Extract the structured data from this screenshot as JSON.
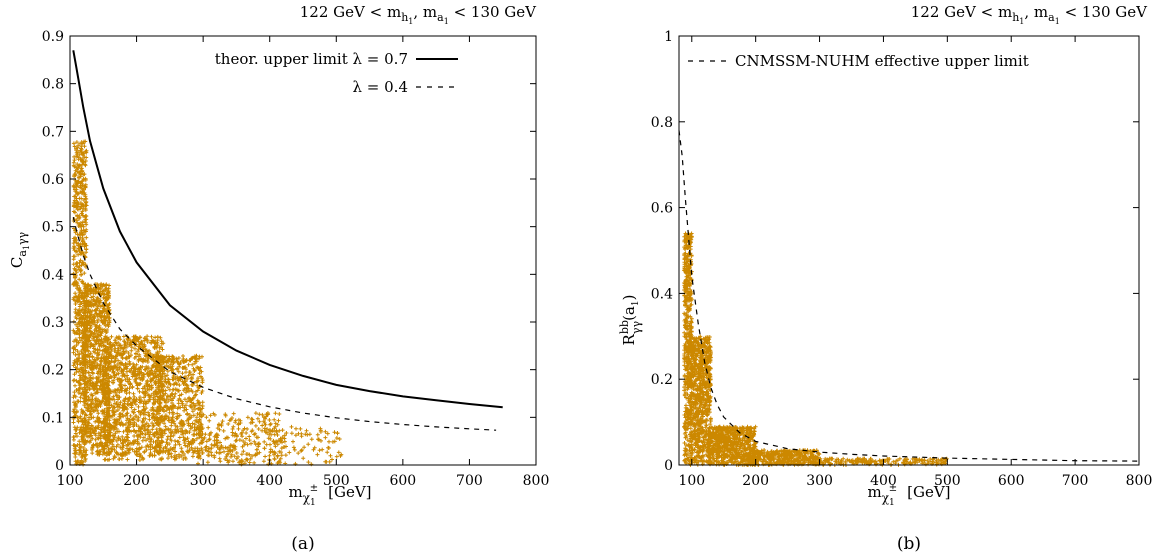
{
  "chart_data": [
    {
      "type": "scatter",
      "panel_label": "(a)",
      "condition_label": {
        "prefix": "122 GeV < m",
        "sub1": "h",
        "sub1b": "1",
        "mid": ", m",
        "sub2": "a",
        "sub2b": "1",
        "suffix": " < 130 GeV"
      },
      "xlabel": {
        "main": "m",
        "sub": "χ",
        "subsub": "1",
        "sup": "±",
        "unit": "[GeV]"
      },
      "ylabel": {
        "main": "C",
        "sub": "a",
        "subsub": "1",
        "sub2": "γγ"
      },
      "xlim": [
        100,
        800
      ],
      "ylim": [
        0,
        0.9
      ],
      "xticks": [
        100,
        200,
        300,
        400,
        500,
        600,
        700,
        800
      ],
      "yticks": [
        0,
        0.1,
        0.2,
        0.3,
        0.4,
        0.5,
        0.6,
        0.7,
        0.8,
        0.9
      ],
      "ytick_labels": [
        "0",
        "0.1",
        "0.2",
        "0.3",
        "0.4",
        "0.5",
        "0.6",
        "0.7",
        "0.8",
        "0.9"
      ],
      "scatter_color": "#cc8800",
      "legend": [
        {
          "text": "theor. upper limit  λ = 0.7",
          "style": "solid"
        },
        {
          "text": "λ = 0.4",
          "style": "dashed"
        }
      ],
      "curves": [
        {
          "style": "solid",
          "points": [
            [
              105,
              0.87
            ],
            [
              110,
              0.83
            ],
            [
              120,
              0.75
            ],
            [
              130,
              0.68
            ],
            [
              140,
              0.63
            ],
            [
              150,
              0.58
            ],
            [
              175,
              0.49
            ],
            [
              200,
              0.425
            ],
            [
              250,
              0.335
            ],
            [
              300,
              0.28
            ],
            [
              350,
              0.24
            ],
            [
              400,
              0.21
            ],
            [
              450,
              0.187
            ],
            [
              500,
              0.168
            ],
            [
              550,
              0.155
            ],
            [
              600,
              0.144
            ],
            [
              650,
              0.136
            ],
            [
              700,
              0.128
            ],
            [
              750,
              0.121
            ]
          ]
        },
        {
          "style": "dashed",
          "points": [
            [
              105,
              0.52
            ],
            [
              110,
              0.49
            ],
            [
              120,
              0.44
            ],
            [
              130,
              0.4
            ],
            [
              140,
              0.37
            ],
            [
              150,
              0.34
            ],
            [
              175,
              0.285
            ],
            [
              200,
              0.25
            ],
            [
              250,
              0.196
            ],
            [
              300,
              0.163
            ],
            [
              350,
              0.139
            ],
            [
              400,
              0.122
            ],
            [
              450,
              0.109
            ],
            [
              500,
              0.099
            ],
            [
              550,
              0.091
            ],
            [
              600,
              0.085
            ],
            [
              650,
              0.08
            ],
            [
              700,
              0.076
            ],
            [
              740,
              0.073
            ]
          ]
        }
      ],
      "scatter_regions": [
        {
          "x": [
            105,
            125
          ],
          "ymin": 0.0,
          "ymax": 0.68,
          "n": 700
        },
        {
          "x": [
            120,
            160
          ],
          "ymin": 0.02,
          "ymax": 0.38,
          "n": 900
        },
        {
          "x": [
            150,
            240
          ],
          "ymin": 0.01,
          "ymax": 0.27,
          "n": 1100
        },
        {
          "x": [
            230,
            300
          ],
          "ymin": 0.01,
          "ymax": 0.23,
          "n": 600
        },
        {
          "x": [
            290,
            420
          ],
          "ymin": 0.0,
          "ymax": 0.11,
          "n": 300
        },
        {
          "x": [
            400,
            510
          ],
          "ymin": 0.0,
          "ymax": 0.08,
          "n": 80
        }
      ]
    },
    {
      "type": "scatter",
      "panel_label": "(b)",
      "condition_label": {
        "prefix": "122 GeV < m",
        "sub1": "h",
        "sub1b": "1",
        "mid": ", m",
        "sub2": "a",
        "sub2b": "1",
        "suffix": " < 130 GeV"
      },
      "xlabel": {
        "main": "m",
        "sub": "χ",
        "subsub": "1",
        "sup": "±",
        "unit": "[GeV]"
      },
      "ylabel": {
        "main": "R",
        "sup": "bb",
        "sub2": "γγ",
        "arg": "(a",
        "argsub": "1",
        "argend": ")"
      },
      "xlim": [
        80,
        800
      ],
      "ylim": [
        0,
        1
      ],
      "xticks": [
        100,
        200,
        300,
        400,
        500,
        600,
        700,
        800
      ],
      "yticks": [
        0,
        0.2,
        0.4,
        0.6,
        0.8,
        1
      ],
      "ytick_labels": [
        "0",
        "0.2",
        "0.4",
        "0.6",
        "0.8",
        "1"
      ],
      "scatter_color": "#cc8800",
      "legend": [
        {
          "text": "CNMSSM-NUHM effective upper limit",
          "style": "dashed"
        }
      ],
      "curves": [
        {
          "style": "dashed",
          "points": [
            [
              80,
              0.78
            ],
            [
              85,
              0.72
            ],
            [
              90,
              0.62
            ],
            [
              95,
              0.53
            ],
            [
              100,
              0.44
            ],
            [
              110,
              0.33
            ],
            [
              120,
              0.24
            ],
            [
              130,
              0.18
            ],
            [
              140,
              0.14
            ],
            [
              150,
              0.112
            ],
            [
              175,
              0.075
            ],
            [
              200,
              0.055
            ],
            [
              250,
              0.038
            ],
            [
              300,
              0.03
            ],
            [
              350,
              0.025
            ],
            [
              400,
              0.021
            ],
            [
              500,
              0.016
            ],
            [
              600,
              0.013
            ],
            [
              700,
              0.01
            ],
            [
              800,
              0.009
            ]
          ]
        }
      ],
      "scatter_regions": [
        {
          "x": [
            88,
            100
          ],
          "ymin": 0.0,
          "ymax": 0.54,
          "n": 500
        },
        {
          "x": [
            98,
            130
          ],
          "ymin": 0.0,
          "ymax": 0.3,
          "n": 800
        },
        {
          "x": [
            125,
            200
          ],
          "ymin": 0.0,
          "ymax": 0.09,
          "n": 700
        },
        {
          "x": [
            190,
            300
          ],
          "ymin": 0.0,
          "ymax": 0.035,
          "n": 400
        },
        {
          "x": [
            290,
            500
          ],
          "ymin": 0.0,
          "ymax": 0.015,
          "n": 200
        }
      ]
    }
  ]
}
